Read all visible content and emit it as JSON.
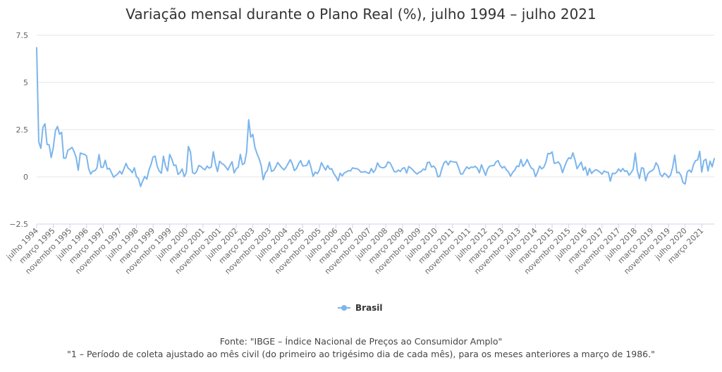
{
  "chart_data": {
    "type": "line",
    "title": "Variação mensal durante o Plano Real (%), julho 1994 – julho 2021",
    "xlabel": "",
    "ylabel": "",
    "ylim": [
      -2.5,
      7.5
    ],
    "yticks": [
      "7.5",
      "5",
      "2.5",
      "0",
      "−2.5"
    ],
    "ytick_values": [
      7.5,
      5,
      2.5,
      0,
      -2.5
    ],
    "x_start": "julho 1994",
    "x_tick_labels": [
      "julho 1994",
      "março 1995",
      "novembro 1995",
      "julho 1996",
      "março 1997",
      "novembro 1997",
      "julho 1998",
      "março 1999",
      "novembro 1999",
      "julho 2000",
      "março 2001",
      "novembro 2001",
      "julho 2002",
      "março 2003",
      "novembro 2003",
      "julho 2004",
      "março 2005",
      "novembro 2005",
      "julho 2006",
      "março 2007",
      "novembro 2007",
      "julho 2008",
      "março 2009",
      "novembro 2009",
      "julho 2010",
      "março 2011",
      "novembro 2011",
      "julho 2012",
      "março 2013",
      "novembro 2013",
      "julho 2014",
      "março 2015",
      "novembro 2015",
      "julho 2016",
      "março 2017",
      "novembro 2017",
      "julho 2018",
      "março 2019",
      "novembro 2019",
      "julho 2020",
      "março 2021"
    ],
    "grid": true,
    "legend_position": "bottom-center",
    "series": [
      {
        "name": "Brasil",
        "color": "#7cb5ec",
        "values": [
          6.84,
          1.86,
          1.51,
          2.62,
          2.81,
          1.71,
          1.7,
          1.02,
          1.55,
          2.43,
          2.67,
          2.26,
          2.36,
          0.99,
          0.99,
          1.41,
          1.47,
          1.56,
          1.34,
          1.02,
          0.35,
          1.26,
          1.22,
          1.19,
          1.11,
          0.44,
          0.15,
          0.3,
          0.32,
          0.47,
          1.18,
          0.5,
          0.51,
          0.88,
          0.41,
          0.45,
          0.22,
          -0.02,
          0.07,
          0.15,
          0.3,
          0.15,
          0.43,
          0.71,
          0.46,
          0.37,
          0.22,
          0.48,
          0.01,
          -0.09,
          -0.51,
          -0.22,
          0.02,
          -0.12,
          0.35,
          0.65,
          1.05,
          1.1,
          0.56,
          0.3,
          0.19,
          1.09,
          0.56,
          0.31,
          1.19,
          0.95,
          0.6,
          0.62,
          0.13,
          0.22,
          0.42,
          0.01,
          0.23,
          1.61,
          1.31,
          0.23,
          0.16,
          0.29,
          0.6,
          0.55,
          0.44,
          0.38,
          0.57,
          0.46,
          0.52,
          1.33,
          0.7,
          0.28,
          0.83,
          0.71,
          0.65,
          0.52,
          0.36,
          0.6,
          0.8,
          0.21,
          0.42,
          0.52,
          1.19,
          0.65,
          0.72,
          1.31,
          3.02,
          2.1,
          2.25,
          1.57,
          1.23,
          0.97,
          0.61,
          -0.15,
          0.2,
          0.34,
          0.78,
          0.29,
          0.34,
          0.52,
          0.76,
          0.61,
          0.47,
          0.37,
          0.51,
          0.71,
          0.91,
          0.69,
          0.33,
          0.44,
          0.69,
          0.86,
          0.58,
          0.59,
          0.61,
          0.87,
          0.49,
          0.03,
          0.25,
          0.17,
          0.35,
          0.75,
          0.55,
          0.36,
          0.6,
          0.41,
          0.43,
          0.16,
          0.01,
          -0.21,
          0.19,
          0.05,
          0.21,
          0.26,
          0.33,
          0.31,
          0.48,
          0.44,
          0.44,
          0.37,
          0.25,
          0.25,
          0.28,
          0.22,
          0.18,
          0.44,
          0.23,
          0.38,
          0.74,
          0.54,
          0.49,
          0.48,
          0.55,
          0.79,
          0.74,
          0.53,
          0.28,
          0.26,
          0.36,
          0.28,
          0.45,
          0.48,
          0.2,
          0.55,
          0.47,
          0.36,
          0.24,
          0.15,
          0.24,
          0.28,
          0.41,
          0.37,
          0.75,
          0.78,
          0.52,
          0.57,
          0.43,
          0.0,
          0.04,
          0.45,
          0.75,
          0.83,
          0.63,
          0.83,
          0.8,
          0.79,
          0.77,
          0.47,
          0.15,
          0.16,
          0.37,
          0.53,
          0.43,
          0.52,
          0.5,
          0.56,
          0.45,
          0.21,
          0.64,
          0.36,
          0.08,
          0.43,
          0.57,
          0.59,
          0.6,
          0.79,
          0.86,
          0.6,
          0.47,
          0.55,
          0.37,
          0.26,
          0.03,
          0.24,
          0.35,
          0.57,
          0.54,
          0.92,
          0.55,
          0.69,
          0.92,
          0.67,
          0.46,
          0.4,
          0.01,
          0.25,
          0.57,
          0.42,
          0.51,
          0.78,
          1.24,
          1.22,
          1.32,
          0.71,
          0.74,
          0.79,
          0.62,
          0.22,
          0.54,
          0.82,
          1.01,
          0.96,
          1.27,
          0.9,
          0.43,
          0.61,
          0.78,
          0.35,
          0.52,
          0.08,
          0.44,
          0.18,
          0.3,
          0.38,
          0.33,
          0.25,
          0.14,
          0.31,
          0.25,
          0.24,
          -0.23,
          0.19,
          0.16,
          0.24,
          0.42,
          0.28,
          0.44,
          0.29,
          0.32,
          0.09,
          0.22,
          0.4,
          1.26,
          0.33,
          -0.09,
          0.48,
          0.45,
          -0.21,
          0.15,
          0.28,
          0.32,
          0.43,
          0.75,
          0.57,
          0.13,
          0.01,
          0.19,
          0.11,
          -0.04,
          0.1,
          0.51,
          1.15,
          0.21,
          0.25,
          0.07,
          -0.31,
          -0.38,
          0.26,
          0.36,
          0.24,
          0.64,
          0.86,
          0.89,
          1.35,
          0.25,
          0.86,
          0.93,
          0.31,
          0.83,
          0.53,
          0.96
        ]
      }
    ]
  },
  "legend": {
    "label": "Brasil"
  },
  "credits": {
    "source": "Fonte: \"IBGE – Índice Nacional de Preços ao Consumidor Amplo\"",
    "note": "\"1 – Período de coleta ajustado ao mês civil (do primeiro ao trigésimo dia de cada mês), para os meses anteriores a março de 1986.\""
  }
}
